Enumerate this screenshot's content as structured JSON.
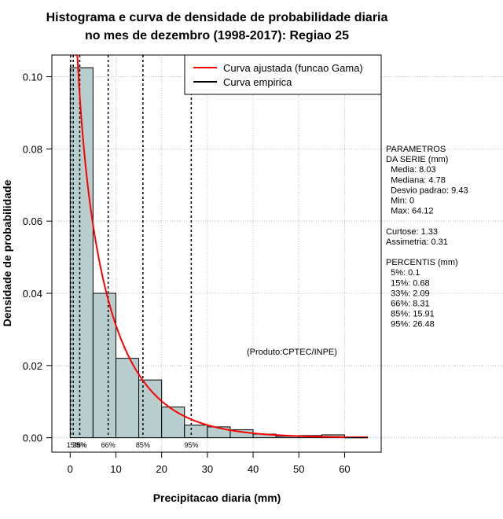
{
  "chart_data": {
    "type": "bar",
    "title": [
      "Histograma e curva de densidade de probabilidade diaria",
      "no mes de dezembro (1998-2017): Regiao 25"
    ],
    "xlabel": "Precipitacao diaria (mm)",
    "ylabel": "Densidade de probabilidade",
    "xlim": [
      -4,
      68
    ],
    "ylim": [
      -0.004,
      0.106
    ],
    "x_ticks": [
      0,
      10,
      20,
      30,
      40,
      50,
      60
    ],
    "y_ticks": [
      0.0,
      0.02,
      0.04,
      0.06,
      0.08,
      0.1
    ],
    "y_tick_labels": [
      "0.00",
      "0.02",
      "0.04",
      "0.06",
      "0.08",
      "0.10"
    ],
    "bins": [
      {
        "x0": 0,
        "x1": 5,
        "value": 0.1025
      },
      {
        "x0": 5,
        "x1": 10,
        "value": 0.04
      },
      {
        "x0": 10,
        "x1": 15,
        "value": 0.022
      },
      {
        "x0": 15,
        "x1": 20,
        "value": 0.016
      },
      {
        "x0": 20,
        "x1": 25,
        "value": 0.0085
      },
      {
        "x0": 25,
        "x1": 30,
        "value": 0.0035
      },
      {
        "x0": 30,
        "x1": 35,
        "value": 0.003
      },
      {
        "x0": 35,
        "x1": 40,
        "value": 0.0022
      },
      {
        "x0": 40,
        "x1": 45,
        "value": 0.001
      },
      {
        "x0": 45,
        "x1": 50,
        "value": 0.0004
      },
      {
        "x0": 50,
        "x1": 55,
        "value": 0.0006
      },
      {
        "x0": 55,
        "x1": 60,
        "value": 0.0008
      },
      {
        "x0": 60,
        "x1": 65,
        "value": 0.0002
      }
    ],
    "gamma_fit": {
      "label": "Curva ajustada (funcao Gama)",
      "shape": 0.78,
      "scale": 10.3,
      "x_max": 65,
      "color": "#ff0000"
    },
    "empirical": {
      "label": "Curva empirica",
      "color": "#000000"
    },
    "percentile_lines": [
      {
        "label": "5%",
        "value": 0.1
      },
      {
        "label": "15%",
        "value": 0.68
      },
      {
        "label": "33%",
        "value": 2.09
      },
      {
        "label": "66%",
        "value": 8.31
      },
      {
        "label": "85%",
        "value": 15.91
      },
      {
        "label": "95%",
        "value": 26.48
      }
    ],
    "percentile_marker_labels": [
      "15%",
      "5%",
      "33%",
      "66%",
      "85%",
      "95%"
    ],
    "grid": true,
    "legend_position": "top-right",
    "bar_color": "#b8cece",
    "annotation": "(Produto:CPTEC/INPE)"
  },
  "side_panel": {
    "lines": [
      "PARAMETROS",
      "DA SERIE (mm)",
      "  Media: 8.03",
      "  Mediana: 4.78",
      "  Desvio padrao: 9.43",
      "  Min: 0",
      "  Max: 64.12",
      "",
      "Curtose: 1.33",
      "Assimetria: 0.31",
      "",
      "PERCENTIS (mm)",
      "  5%: 0.1",
      "  15%: 0.68",
      "  33%: 2.09",
      "  66%: 8.31",
      "  85%: 15.91",
      "  95%: 26.48"
    ]
  }
}
